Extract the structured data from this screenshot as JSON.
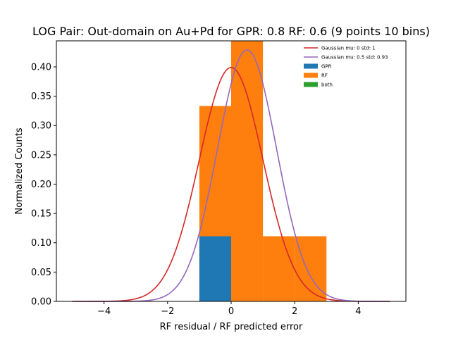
{
  "chart_data": {
    "type": "bar",
    "title": "LOG Pair: Out-domain on Au+Pd for GPR: 0.8 RF: 0.6 (9 points 10 bins)",
    "xlabel": "RF residual / RF predicted error",
    "ylabel": "Normalized Counts",
    "xlim": [
      -5.5,
      5.5
    ],
    "ylim": [
      0,
      0.4444
    ],
    "x_ticks": [
      -4,
      -2,
      0,
      2,
      4
    ],
    "x_tick_labels": [
      "−4",
      "−2",
      "0",
      "2",
      "4"
    ],
    "y_ticks": [
      0.0,
      0.05,
      0.1,
      0.15,
      0.2,
      0.25,
      0.3,
      0.35,
      0.4
    ],
    "y_tick_labels": [
      "0.00",
      "0.05",
      "0.10",
      "0.15",
      "0.20",
      "0.25",
      "0.30",
      "0.35",
      "0.40"
    ],
    "legend_position": "top-right",
    "histograms": [
      {
        "name": "RF",
        "color": "#ff7f0e",
        "bins": [
          {
            "x0": -1,
            "x1": 0,
            "value": 0.3333
          },
          {
            "x0": 0,
            "x1": 1,
            "value": 0.4444
          },
          {
            "x0": 1,
            "x1": 2,
            "value": 0.1111
          },
          {
            "x0": 2,
            "x1": 3,
            "value": 0.1111
          }
        ]
      },
      {
        "name": "GPR",
        "color": "#1f77b4",
        "bins": [
          {
            "x0": -1,
            "x1": 0,
            "value": 0.1111
          }
        ]
      }
    ],
    "curves": [
      {
        "name": "Gaussian mu: 0 std: 1",
        "mu": 0,
        "std": 1,
        "color": "#d62728",
        "x_range": [
          -5,
          5
        ]
      },
      {
        "name": "Gaussian mu: 0.5 std: 0.93",
        "mu": 0.5,
        "std": 0.93,
        "color": "#9467bd",
        "x_range": [
          -5,
          5
        ]
      }
    ],
    "legend": [
      {
        "label": "Gaussian mu: 0 std: 1",
        "kind": "line",
        "color": "#d62728"
      },
      {
        "label": "Gaussian mu: 0.5 std: 0.93",
        "kind": "line",
        "color": "#9467bd"
      },
      {
        "label": "GPR",
        "kind": "patch",
        "color": "#1f77b4"
      },
      {
        "label": "RF",
        "kind": "patch",
        "color": "#ff7f0e"
      },
      {
        "label": "both",
        "kind": "patch",
        "color": "#2ca02c"
      }
    ]
  }
}
